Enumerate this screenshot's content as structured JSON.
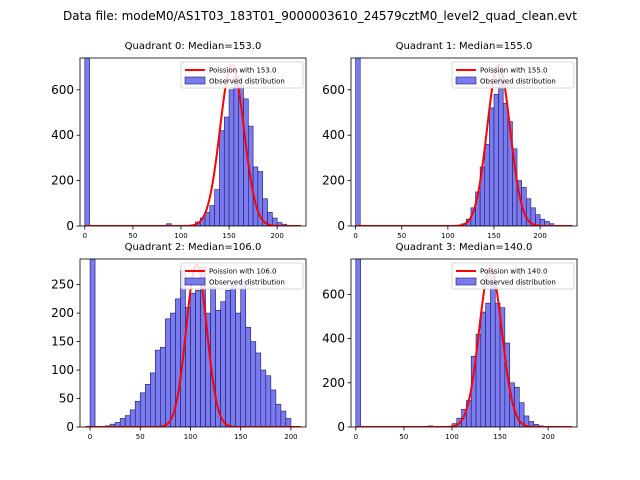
{
  "figure_title": "Data file: modeM0/AS1T03_183T01_9000003610_24579cztM0_level2_quad_clean.evt",
  "colors": {
    "bar_fill": "#7b7bf0",
    "bar_edge": "#1a1a66",
    "poisson_line": "#ff0000"
  },
  "chart_data": [
    {
      "type": "bar",
      "title": "Quadrant 0: Median=153.0",
      "xlim": [
        -5,
        230
      ],
      "ylim": [
        0,
        740
      ],
      "xticks": [
        0,
        50,
        100,
        150,
        200
      ],
      "yticks": [
        0,
        200,
        400,
        600
      ],
      "bin_width": 5,
      "legend": {
        "line_label": "Poission with 153.0",
        "bar_label": "Observed distribution"
      },
      "series": [
        {
          "name": "Observed distribution",
          "x": [
            0,
            85,
            110,
            115,
            120,
            125,
            130,
            135,
            140,
            145,
            150,
            155,
            160,
            165,
            170,
            175,
            180,
            185,
            190,
            195,
            200,
            205
          ],
          "values": [
            740,
            10,
            5,
            18,
            35,
            60,
            90,
            160,
            420,
            480,
            600,
            660,
            620,
            560,
            440,
            260,
            240,
            120,
            60,
            35,
            15,
            8
          ]
        },
        {
          "name": "Poission with 153.0",
          "type": "line",
          "mean": 153.0,
          "peak": 710
        }
      ]
    },
    {
      "type": "bar",
      "title": "Quadrant 1: Median=155.0",
      "xlim": [
        -5,
        240
      ],
      "ylim": [
        0,
        740
      ],
      "xticks": [
        0,
        50,
        100,
        150,
        200
      ],
      "yticks": [
        0,
        200,
        400,
        600
      ],
      "bin_width": 5,
      "legend": {
        "line_label": "Poission with 155.0",
        "bar_label": "Observed distribution"
      },
      "series": [
        {
          "name": "Observed distribution",
          "x": [
            0,
            115,
            120,
            125,
            130,
            135,
            140,
            145,
            150,
            155,
            160,
            165,
            170,
            175,
            180,
            185,
            190,
            195,
            200,
            205,
            210
          ],
          "values": [
            740,
            10,
            30,
            80,
            150,
            260,
            360,
            520,
            580,
            680,
            540,
            460,
            340,
            200,
            170,
            120,
            80,
            50,
            30,
            20,
            10
          ]
        },
        {
          "name": "Poission with 155.0",
          "type": "line",
          "mean": 155.0,
          "peak": 710
        }
      ]
    },
    {
      "type": "bar",
      "title": "Quadrant 2: Median=106.0",
      "xlim": [
        -10,
        215
      ],
      "ylim": [
        0,
        295
      ],
      "xticks": [
        0,
        50,
        100,
        150,
        200
      ],
      "yticks": [
        0,
        50,
        100,
        150,
        200,
        250
      ],
      "bin_width": 5,
      "legend": {
        "line_label": "Poission with 106.0",
        "bar_label": "Observed distribution"
      },
      "series": [
        {
          "name": "Observed distribution",
          "x": [
            0,
            15,
            20,
            25,
            30,
            35,
            40,
            45,
            50,
            55,
            60,
            65,
            70,
            75,
            80,
            85,
            90,
            95,
            100,
            105,
            110,
            115,
            120,
            125,
            130,
            135,
            140,
            145,
            150,
            155,
            160,
            165,
            170,
            175,
            180,
            185,
            190,
            195
          ],
          "values": [
            295,
            2,
            5,
            8,
            15,
            20,
            30,
            45,
            60,
            75,
            95,
            135,
            140,
            190,
            200,
            225,
            275,
            210,
            235,
            240,
            280,
            200,
            245,
            205,
            220,
            240,
            250,
            200,
            255,
            175,
            150,
            130,
            100,
            90,
            65,
            40,
            28,
            15
          ]
        },
        {
          "name": "Poission with 106.0",
          "type": "line",
          "mean": 106.0,
          "peak": 285
        }
      ]
    },
    {
      "type": "bar",
      "title": "Quadrant 3: Median=140.0",
      "xlim": [
        -5,
        230
      ],
      "ylim": [
        0,
        760
      ],
      "xticks": [
        0,
        50,
        100,
        150,
        200
      ],
      "yticks": [
        0,
        200,
        400,
        600
      ],
      "bin_width": 5,
      "legend": {
        "line_label": "Poission with 140.0",
        "bar_label": "Observed distribution"
      },
      "series": [
        {
          "name": "Observed distribution",
          "x": [
            0,
            75,
            100,
            105,
            110,
            115,
            120,
            125,
            130,
            135,
            140,
            145,
            150,
            155,
            160,
            165,
            170,
            175,
            180,
            185,
            190
          ],
          "values": [
            760,
            5,
            15,
            40,
            80,
            120,
            320,
            420,
            520,
            560,
            680,
            560,
            540,
            380,
            200,
            180,
            110,
            50,
            25,
            12,
            5
          ]
        },
        {
          "name": "Poission with 140.0",
          "type": "line",
          "mean": 140.0,
          "peak": 720
        }
      ]
    }
  ]
}
